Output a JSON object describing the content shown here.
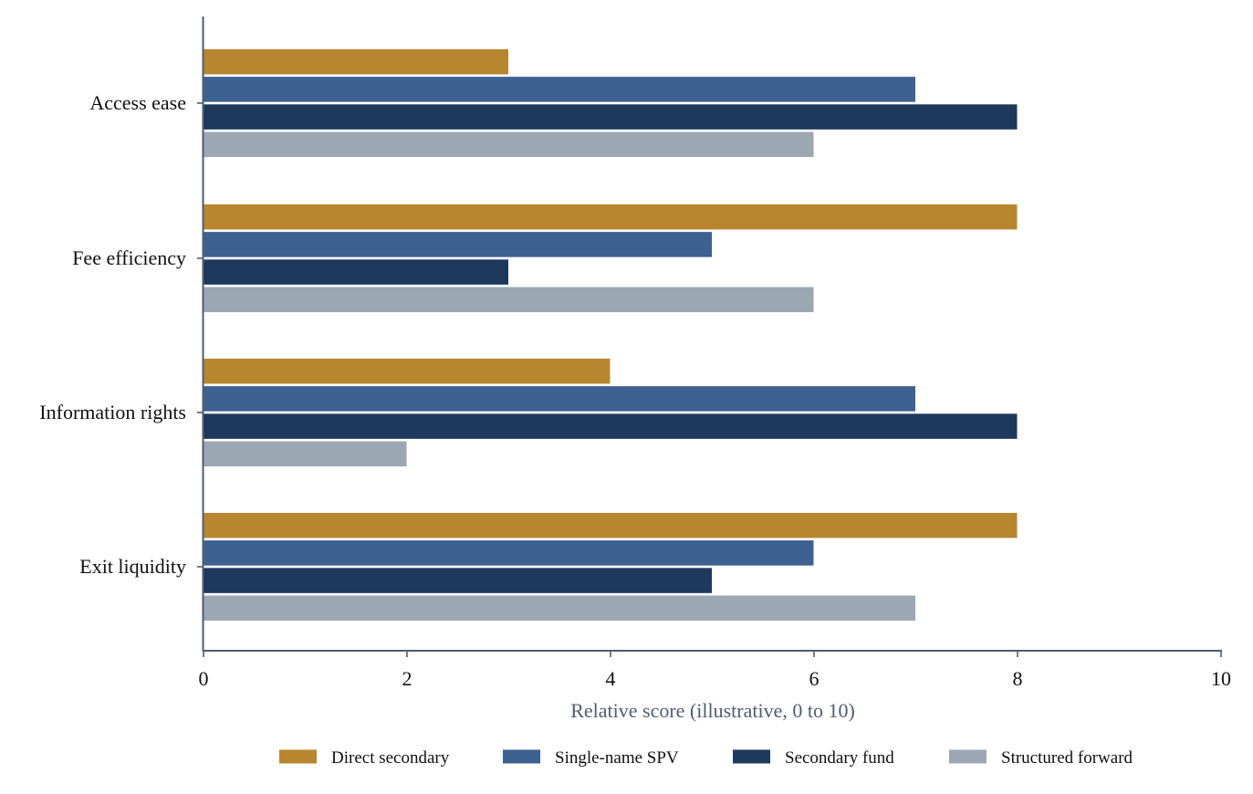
{
  "chart_data": {
    "type": "bar",
    "orientation": "horizontal",
    "categories": [
      "Access ease",
      "Fee efficiency",
      "Information rights",
      "Exit liquidity"
    ],
    "series": [
      {
        "name": "Direct secondary",
        "color": "#b8862f",
        "values": [
          3,
          8,
          4,
          8
        ]
      },
      {
        "name": "Single-name SPV",
        "color": "#3d6191",
        "values": [
          7,
          5,
          7,
          6
        ]
      },
      {
        "name": "Secondary fund",
        "color": "#1f395c",
        "values": [
          8,
          3,
          8,
          5
        ]
      },
      {
        "name": "Structured forward",
        "color": "#9ba8b4",
        "values": [
          6,
          6,
          2,
          7
        ]
      }
    ],
    "xlabel": "Relative score (illustrative, 0 to 10)",
    "ylabel": "",
    "title": "",
    "xlim": [
      0,
      10
    ],
    "xticks": [
      0,
      2,
      4,
      6,
      8,
      10
    ],
    "grid": false,
    "legend_position": "bottom-center",
    "axis_color": "#4f5d6e"
  }
}
